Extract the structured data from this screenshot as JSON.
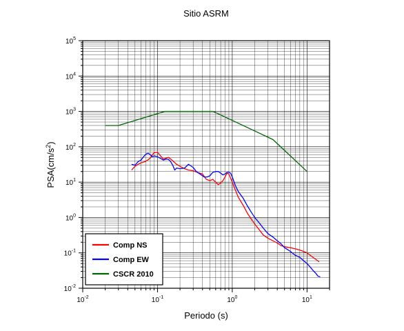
{
  "chart_data": {
    "type": "line",
    "title": "Sitio ASRM",
    "xlabel": "Periodo (s)",
    "ylabel_base": "PSA(cm/s",
    "ylabel_sup": "2",
    "ylabel_end": ")",
    "x_scale": "log",
    "y_scale": "log",
    "xlim": [
      0.01,
      20
    ],
    "ylim": [
      0.01,
      100000
    ],
    "grid": true,
    "legend_position": "bottom-left",
    "x_ticks": [
      {
        "base": "10",
        "exp": "-2",
        "value": 0.01
      },
      {
        "base": "10",
        "exp": "-1",
        "value": 0.1
      },
      {
        "base": "10",
        "exp": "0",
        "value": 1
      },
      {
        "base": "10",
        "exp": "1",
        "value": 10
      }
    ],
    "y_ticks": [
      {
        "base": "10",
        "exp": "-2",
        "value": 0.01
      },
      {
        "base": "10",
        "exp": "-1",
        "value": 0.1
      },
      {
        "base": "10",
        "exp": "0",
        "value": 1
      },
      {
        "base": "10",
        "exp": "1",
        "value": 10
      },
      {
        "base": "10",
        "exp": "2",
        "value": 100
      },
      {
        "base": "10",
        "exp": "3",
        "value": 1000
      },
      {
        "base": "10",
        "exp": "4",
        "value": 10000
      },
      {
        "base": "10",
        "exp": "5",
        "value": 100000
      }
    ],
    "series": [
      {
        "name": "Comp NS",
        "color": "#ff0000",
        "points": [
          [
            0.045,
            22
          ],
          [
            0.05,
            28
          ],
          [
            0.055,
            32
          ],
          [
            0.06,
            35
          ],
          [
            0.068,
            38
          ],
          [
            0.075,
            43
          ],
          [
            0.08,
            48
          ],
          [
            0.085,
            58
          ],
          [
            0.09,
            68
          ],
          [
            0.1,
            70
          ],
          [
            0.105,
            62
          ],
          [
            0.11,
            55
          ],
          [
            0.12,
            45
          ],
          [
            0.13,
            48
          ],
          [
            0.14,
            50
          ],
          [
            0.15,
            45
          ],
          [
            0.16,
            40
          ],
          [
            0.18,
            32
          ],
          [
            0.2,
            28
          ],
          [
            0.23,
            24
          ],
          [
            0.26,
            22
          ],
          [
            0.3,
            21
          ],
          [
            0.34,
            19
          ],
          [
            0.4,
            17
          ],
          [
            0.45,
            12
          ],
          [
            0.5,
            11
          ],
          [
            0.55,
            12
          ],
          [
            0.6,
            10
          ],
          [
            0.65,
            8.5
          ],
          [
            0.7,
            9.5
          ],
          [
            0.75,
            11
          ],
          [
            0.8,
            14
          ],
          [
            0.85,
            18
          ],
          [
            0.9,
            17
          ],
          [
            0.95,
            13
          ],
          [
            1.0,
            10
          ],
          [
            1.1,
            6
          ],
          [
            1.2,
            3.8
          ],
          [
            1.4,
            2.2
          ],
          [
            1.6,
            1.3
          ],
          [
            1.8,
            0.9
          ],
          [
            2.0,
            0.65
          ],
          [
            2.3,
            0.45
          ],
          [
            2.6,
            0.32
          ],
          [
            3.0,
            0.26
          ],
          [
            3.5,
            0.22
          ],
          [
            4.0,
            0.19
          ],
          [
            4.5,
            0.16
          ],
          [
            5.0,
            0.15
          ],
          [
            6.0,
            0.14
          ],
          [
            7.0,
            0.13
          ],
          [
            8.0,
            0.12
          ],
          [
            9.0,
            0.11
          ],
          [
            10.0,
            0.1
          ],
          [
            12.0,
            0.075
          ],
          [
            14.5,
            0.056
          ]
        ]
      },
      {
        "name": "Comp EW",
        "color": "#0000ff",
        "points": [
          [
            0.045,
            32
          ],
          [
            0.05,
            30
          ],
          [
            0.055,
            38
          ],
          [
            0.06,
            42
          ],
          [
            0.065,
            52
          ],
          [
            0.07,
            62
          ],
          [
            0.075,
            66
          ],
          [
            0.08,
            60
          ],
          [
            0.085,
            52
          ],
          [
            0.09,
            55
          ],
          [
            0.1,
            52
          ],
          [
            0.11,
            47
          ],
          [
            0.12,
            42
          ],
          [
            0.13,
            45
          ],
          [
            0.14,
            44
          ],
          [
            0.15,
            38
          ],
          [
            0.16,
            30
          ],
          [
            0.17,
            22
          ],
          [
            0.18,
            25
          ],
          [
            0.2,
            24
          ],
          [
            0.23,
            25
          ],
          [
            0.26,
            32
          ],
          [
            0.3,
            26
          ],
          [
            0.33,
            20
          ],
          [
            0.37,
            17
          ],
          [
            0.42,
            14
          ],
          [
            0.46,
            14
          ],
          [
            0.5,
            15
          ],
          [
            0.55,
            19
          ],
          [
            0.6,
            20
          ],
          [
            0.65,
            20
          ],
          [
            0.7,
            18
          ],
          [
            0.75,
            16
          ],
          [
            0.8,
            17
          ],
          [
            0.85,
            19
          ],
          [
            0.9,
            19
          ],
          [
            0.95,
            18
          ],
          [
            1.0,
            14
          ],
          [
            1.1,
            8
          ],
          [
            1.2,
            5.5
          ],
          [
            1.4,
            3.5
          ],
          [
            1.6,
            2.1
          ],
          [
            1.8,
            1.4
          ],
          [
            2.0,
            1.0
          ],
          [
            2.3,
            0.7
          ],
          [
            2.6,
            0.5
          ],
          [
            3.0,
            0.35
          ],
          [
            3.5,
            0.28
          ],
          [
            4.0,
            0.22
          ],
          [
            4.5,
            0.18
          ],
          [
            5.0,
            0.14
          ],
          [
            6.0,
            0.11
          ],
          [
            7.0,
            0.085
          ],
          [
            8.0,
            0.075
          ],
          [
            9.0,
            0.06
          ],
          [
            10.0,
            0.05
          ],
          [
            11.0,
            0.04
          ],
          [
            12.0,
            0.032
          ],
          [
            13.0,
            0.027
          ],
          [
            14.0,
            0.022
          ],
          [
            15.0,
            0.021
          ]
        ]
      },
      {
        "name": "CSCR 2010",
        "color": "#006400",
        "points": [
          [
            0.02,
            400
          ],
          [
            0.03,
            400
          ],
          [
            0.125,
            1000
          ],
          [
            0.555,
            1000
          ],
          [
            3.5,
            160
          ],
          [
            10.0,
            20
          ]
        ]
      }
    ]
  }
}
